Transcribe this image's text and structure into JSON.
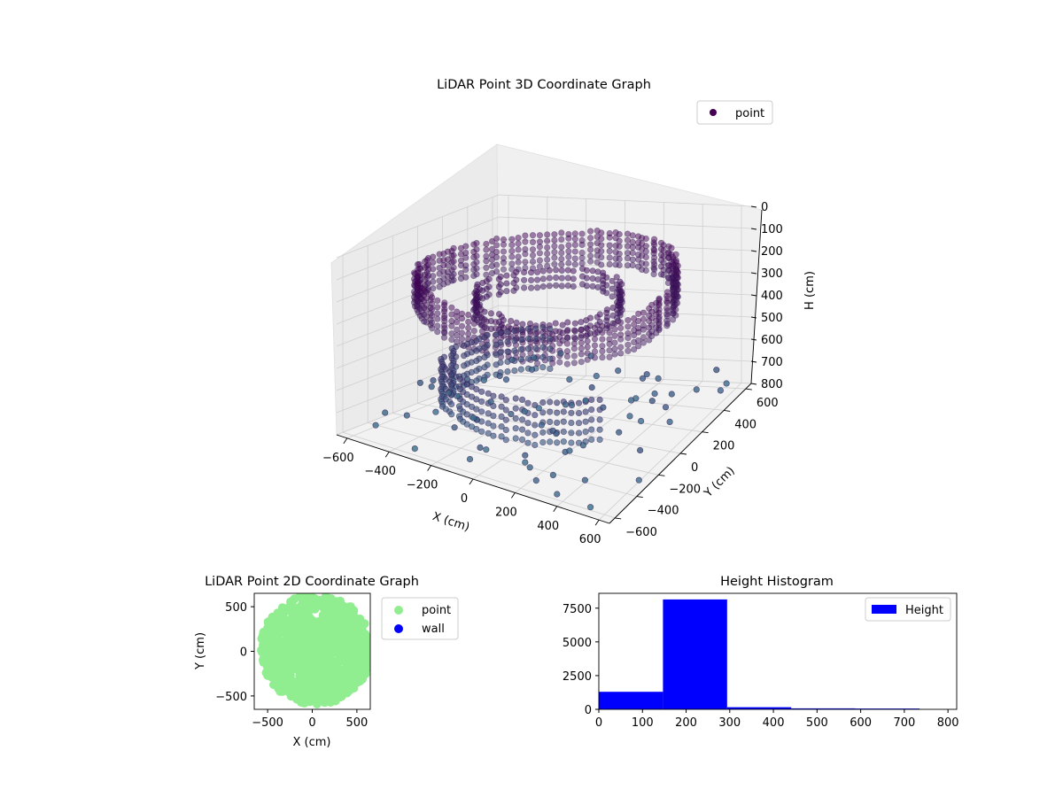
{
  "chart_data": [
    {
      "type": "scatter",
      "projection": "3d",
      "title": "LiDAR Point 3D Coordinate Graph",
      "xlabel": "X (cm)",
      "ylabel": "Y (cm)",
      "zlabel": "H (cm)",
      "xlim": [
        -650,
        650
      ],
      "ylim": [
        -650,
        650
      ],
      "zlim": [
        0,
        800
      ],
      "z_inverted": true,
      "xticks": [
        "−600",
        "−400",
        "−200",
        "0",
        "200",
        "400",
        "600"
      ],
      "yticks": [
        "−600",
        "−400",
        "−200",
        "0",
        "200",
        "400",
        "600"
      ],
      "zticks": [
        "0",
        "100",
        "200",
        "300",
        "400",
        "500",
        "600",
        "700",
        "800"
      ],
      "grid": true,
      "legend": {
        "position": "top-right",
        "entries": [
          {
            "label": "point",
            "color": "#440154"
          }
        ]
      },
      "colormap": "viridis",
      "series": [
        {
          "name": "point",
          "shape": "ring",
          "radius_cm": 560,
          "h_range_cm": [
            100,
            260
          ]
        },
        {
          "name": "point",
          "shape": "inner ring",
          "radius_cm": 320,
          "h_range_cm": [
            200,
            300
          ]
        },
        {
          "name": "point",
          "shape": "lower arc",
          "radius_cm": 440,
          "h_range_cm": [
            500,
            700
          ]
        },
        {
          "name": "point",
          "shape": "outliers",
          "h_range_cm": [
            650,
            800
          ]
        }
      ]
    },
    {
      "type": "scatter",
      "title": "LiDAR Point 2D Coordinate Graph",
      "xlabel": "X (cm)",
      "ylabel": "Y (cm)",
      "xlim": [
        -650,
        650
      ],
      "ylim": [
        -650,
        650
      ],
      "xticks": [
        "−500",
        "0",
        "500"
      ],
      "yticks": [
        "−500",
        "0",
        "500"
      ],
      "legend": {
        "position": "right",
        "entries": [
          {
            "label": "point",
            "color": "#90ee90"
          },
          {
            "label": "wall",
            "color": "#0000ff"
          }
        ]
      },
      "series": [
        {
          "name": "point",
          "color": "#90ee90",
          "shape": "disc",
          "x_range_cm": [
            -600,
            650
          ],
          "y_range_cm": [
            -620,
            650
          ]
        }
      ]
    },
    {
      "type": "bar",
      "subtype": "histogram",
      "title": "Height Histogram",
      "xlim": [
        0,
        820
      ],
      "ylim": [
        0,
        8600
      ],
      "xticks": [
        "0",
        "100",
        "200",
        "300",
        "400",
        "500",
        "600",
        "700",
        "800"
      ],
      "yticks": [
        "0",
        "2500",
        "5000",
        "7500"
      ],
      "legend": {
        "position": "top-right",
        "entries": [
          {
            "label": "Height",
            "color": "#0000ff"
          }
        ]
      },
      "bins": [
        {
          "x0": 0,
          "x1": 147,
          "count": 1300
        },
        {
          "x0": 147,
          "x1": 294,
          "count": 8150
        },
        {
          "x0": 294,
          "x1": 441,
          "count": 160
        },
        {
          "x0": 441,
          "x1": 588,
          "count": 70
        },
        {
          "x0": 588,
          "x1": 735,
          "count": 60
        }
      ],
      "color": "#0000ff"
    }
  ]
}
